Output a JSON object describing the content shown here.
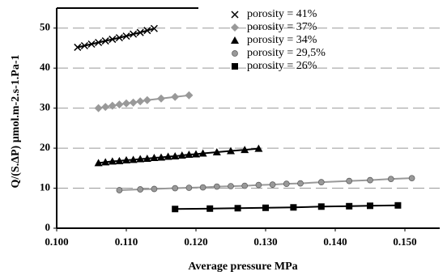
{
  "chart_data": {
    "type": "scatter",
    "xlabel": "Average pressure MPa",
    "ylabel": "Q/(S.ΔP) µmol.m-2.s-1.Pa-1",
    "xlim": [
      0.1,
      0.155
    ],
    "ylim": [
      0,
      55
    ],
    "xticks": [
      {
        "value": 0.1,
        "label": "0.100"
      },
      {
        "value": 0.11,
        "label": "0.110"
      },
      {
        "value": 0.12,
        "label": "0.120"
      },
      {
        "value": 0.13,
        "label": "0.130"
      },
      {
        "value": 0.14,
        "label": "0.140"
      },
      {
        "value": 0.15,
        "label": "0.150"
      }
    ],
    "yticks": [
      0,
      10,
      20,
      30,
      40,
      50
    ],
    "grid": true,
    "legend": "upper right",
    "series": [
      {
        "name": "porosity = 41%",
        "color": "#000000",
        "marker": "x",
        "x": [
          0.103,
          0.104,
          0.105,
          0.106,
          0.107,
          0.108,
          0.109,
          0.11,
          0.111,
          0.112,
          0.113,
          0.114
        ],
        "values": [
          45.2,
          45.6,
          46.0,
          46.4,
          46.8,
          47.2,
          47.6,
          48.0,
          48.5,
          48.9,
          49.4,
          49.9
        ]
      },
      {
        "name": "porosity = 37%",
        "color": "#999999",
        "marker": "diamond",
        "x": [
          0.106,
          0.107,
          0.108,
          0.109,
          0.11,
          0.111,
          0.112,
          0.113,
          0.115,
          0.117,
          0.119
        ],
        "values": [
          30.0,
          30.3,
          30.6,
          30.9,
          31.2,
          31.4,
          31.7,
          32.0,
          32.4,
          32.8,
          33.2
        ]
      },
      {
        "name": "porosity = 34%",
        "color": "#000000",
        "marker": "triangle",
        "x": [
          0.106,
          0.107,
          0.108,
          0.109,
          0.11,
          0.111,
          0.112,
          0.113,
          0.114,
          0.115,
          0.116,
          0.117,
          0.118,
          0.119,
          0.12,
          0.121,
          0.123,
          0.125,
          0.127,
          0.129
        ],
        "values": [
          16.3,
          16.5,
          16.7,
          16.8,
          17.0,
          17.1,
          17.3,
          17.4,
          17.6,
          17.7,
          17.9,
          18.0,
          18.2,
          18.4,
          18.5,
          18.7,
          19.0,
          19.3,
          19.6,
          19.9
        ]
      },
      {
        "name": "porosity = 29,5%",
        "color": "#999999",
        "marker": "circle",
        "x": [
          0.109,
          0.112,
          0.114,
          0.117,
          0.119,
          0.121,
          0.123,
          0.125,
          0.127,
          0.129,
          0.131,
          0.133,
          0.135,
          0.138,
          0.142,
          0.145,
          0.148,
          0.151
        ],
        "values": [
          9.5,
          9.7,
          9.8,
          10.0,
          10.1,
          10.2,
          10.4,
          10.5,
          10.6,
          10.8,
          10.9,
          11.1,
          11.2,
          11.5,
          11.8,
          12.0,
          12.3,
          12.5
        ]
      },
      {
        "name": "porosity = 26%",
        "color": "#000000",
        "marker": "square",
        "x": [
          0.117,
          0.122,
          0.126,
          0.13,
          0.134,
          0.138,
          0.142,
          0.145,
          0.149
        ],
        "values": [
          4.8,
          4.9,
          5.0,
          5.1,
          5.2,
          5.4,
          5.5,
          5.6,
          5.7
        ]
      }
    ]
  }
}
